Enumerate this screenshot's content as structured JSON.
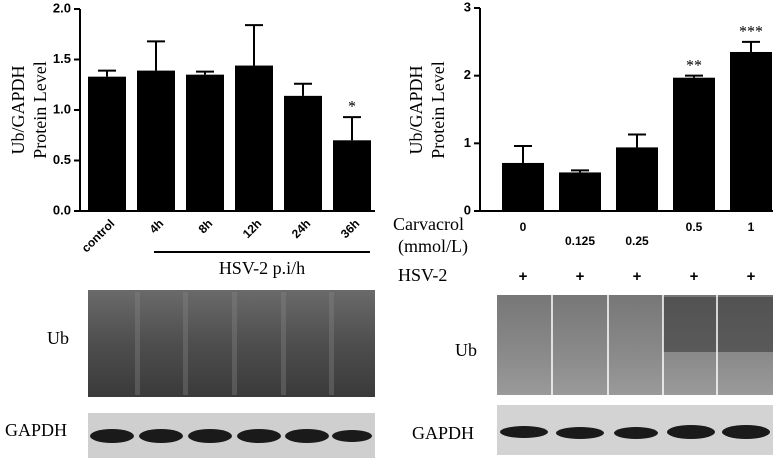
{
  "chart_data": [
    {
      "type": "bar",
      "y_label": [
        "Ub/GAPDH",
        "Protein Level"
      ],
      "categories": [
        "control",
        "4h",
        "8h",
        "12h",
        "24h",
        "36h"
      ],
      "values": [
        1.33,
        1.39,
        1.35,
        1.44,
        1.14,
        0.7
      ],
      "errors": [
        0.06,
        0.29,
        0.03,
        0.4,
        0.12,
        0.23
      ],
      "annotations": [
        null,
        null,
        null,
        null,
        null,
        "*"
      ],
      "group_label": "HSV-2 p.i/h",
      "color": "#000000",
      "ylim": [
        0,
        2
      ],
      "yticks": [
        {
          "value": 0,
          "label": "0.0"
        },
        {
          "value": 0.5,
          "label": "0.5"
        },
        {
          "value": 1,
          "label": "1.0"
        },
        {
          "value": 1.5,
          "label": "1.5"
        },
        {
          "value": 2,
          "label": "2.0"
        }
      ],
      "blot_labels": [
        "Ub",
        "GAPDH"
      ]
    },
    {
      "type": "bar",
      "y_label": [
        "Ub/GAPDH",
        "Protein Level"
      ],
      "categories": [
        "0",
        "0.125",
        "0.25",
        "0.5",
        "1"
      ],
      "values": [
        0.71,
        0.57,
        0.94,
        1.97,
        2.35
      ],
      "errors": [
        0.25,
        0.03,
        0.19,
        0.03,
        0.15
      ],
      "annotations": [
        null,
        null,
        null,
        "**",
        "***"
      ],
      "row_labels": [
        "Carvacrol",
        "(mmol/L)"
      ],
      "treatment_label": "HSV-2",
      "treatment_marks": [
        "+",
        "+",
        "+",
        "+",
        "+"
      ],
      "color": "#000000",
      "ylim": [
        0,
        3
      ],
      "yticks": [
        0,
        1,
        2,
        3
      ],
      "blot_labels": [
        "Ub",
        "GAPDH"
      ]
    }
  ]
}
